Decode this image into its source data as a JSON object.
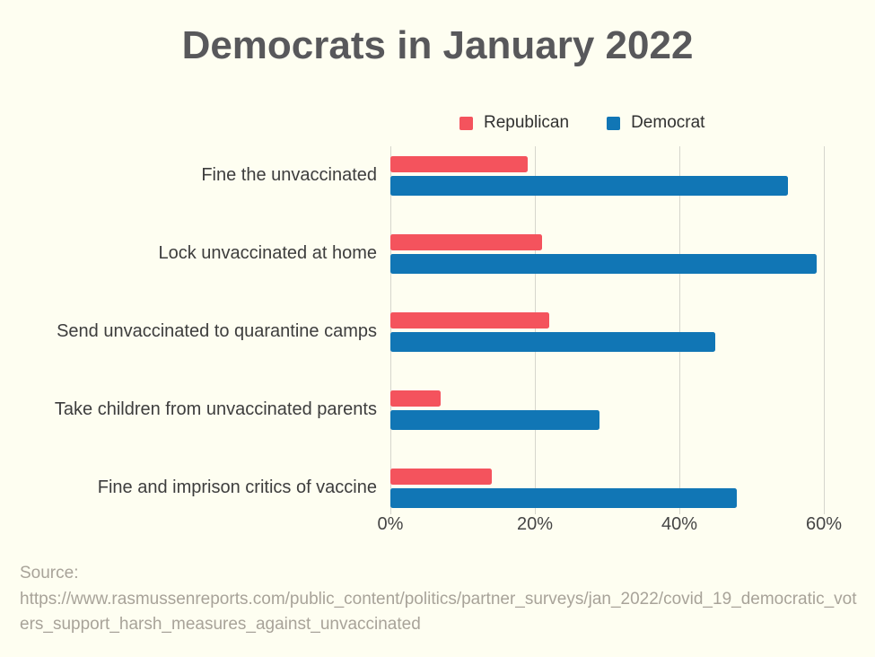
{
  "page": {
    "background_color": "#fefef1"
  },
  "chart_data": {
    "type": "bar",
    "orientation": "horizontal",
    "title": "Democrats in January 2022",
    "categories": [
      "Fine the unvaccinated",
      "Lock unvaccinated at home",
      "Send unvaccinated to quarantine camps",
      "Take children from unvaccinated parents",
      "Fine and imprison critics of vaccine"
    ],
    "series": [
      {
        "name": "Republican",
        "color": "#f4535d",
        "values": [
          19,
          21,
          22,
          7,
          14
        ]
      },
      {
        "name": "Democrat",
        "color": "#1176b5",
        "values": [
          55,
          59,
          45,
          29,
          48
        ]
      }
    ],
    "x_tick_labels": [
      "0%",
      "20%",
      "40%",
      "60%"
    ],
    "x_tick_values": [
      0,
      20,
      40,
      60
    ],
    "xlim": [
      0,
      64
    ],
    "grid": true,
    "legend_position": "top",
    "value_unit": "percent"
  },
  "colors": {
    "title": "#58585b",
    "category_label": "#3d3d3d",
    "tick_label": "#454545",
    "gridline": "#d6d6cd",
    "legend_text": "#303030",
    "source_text": "#a8a399"
  },
  "source": {
    "label": "Source:",
    "url": "https://www.rasmussenreports.com/public_content/politics/partner_surveys/jan_2022/covid_19_democratic_voters_support_harsh_measures_against_unvaccinated"
  }
}
